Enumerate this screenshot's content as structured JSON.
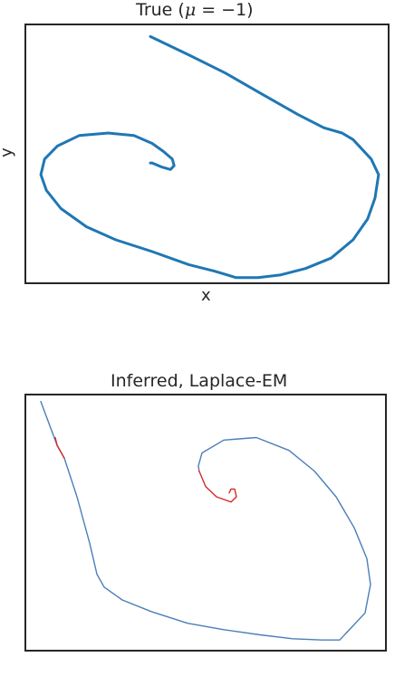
{
  "charts": [
    {
      "title": "True (",
      "title_mu": "μ",
      "title_rest": " = −1)",
      "xlabel": "x",
      "ylabel": "y"
    },
    {
      "title": "Inferred, Laplace-EM"
    }
  ],
  "chart_data": [
    {
      "type": "line",
      "title": "True (μ = −1)",
      "xlabel": "x",
      "ylabel": "y",
      "xlim": [
        0,
        1
      ],
      "ylim": [
        0,
        1
      ],
      "grid": false,
      "series": [
        {
          "color": "#1f77b4",
          "x": [
            0.345,
            0.45,
            0.55,
            0.65,
            0.75,
            0.82,
            0.87,
            0.9,
            0.95,
            0.97,
            0.96,
            0.94,
            0.9,
            0.84,
            0.77,
            0.7,
            0.64,
            0.58,
            0.52,
            0.45,
            0.35,
            0.25,
            0.17,
            0.1,
            0.06,
            0.045,
            0.055,
            0.09,
            0.15,
            0.23,
            0.3,
            0.35,
            0.38,
            0.405,
            0.41,
            0.4,
            0.375,
            0.35,
            0.345
          ],
          "y": [
            0.95,
            0.88,
            0.81,
            0.73,
            0.65,
            0.6,
            0.58,
            0.555,
            0.48,
            0.42,
            0.33,
            0.25,
            0.17,
            0.1,
            0.06,
            0.035,
            0.025,
            0.025,
            0.05,
            0.075,
            0.125,
            0.17,
            0.22,
            0.29,
            0.36,
            0.42,
            0.48,
            0.53,
            0.57,
            0.58,
            0.57,
            0.54,
            0.51,
            0.48,
            0.455,
            0.44,
            0.45,
            0.465,
            0.465
          ]
        }
      ]
    },
    {
      "type": "line",
      "title": "Inferred, Laplace-EM",
      "xlim": [
        0,
        1
      ],
      "ylim": [
        0,
        1
      ],
      "grid": false,
      "series": [
        {
          "color": "#4a7fb8",
          "x": [
            0.045,
            0.09,
            0.11,
            0.145,
            0.18,
            0.2,
            0.22,
            0.27,
            0.35,
            0.45,
            0.55,
            0.65,
            0.74,
            0.82,
            0.87,
            0.94,
            0.955,
            0.945,
            0.91,
            0.86,
            0.8,
            0.73,
            0.64,
            0.55,
            0.49,
            0.48,
            0.482
          ],
          "y": [
            0.97,
            0.8,
            0.75,
            0.6,
            0.42,
            0.3,
            0.25,
            0.2,
            0.155,
            0.11,
            0.085,
            0.065,
            0.05,
            0.045,
            0.045,
            0.15,
            0.26,
            0.36,
            0.48,
            0.6,
            0.7,
            0.78,
            0.83,
            0.82,
            0.77,
            0.72,
            0.7
          ]
        },
        {
          "color": "#d62728",
          "x": [
            0.085,
            0.09,
            0.11
          ],
          "y": [
            0.83,
            0.8,
            0.75
          ]
        },
        {
          "color": "#d62728",
          "x": [
            0.482,
            0.5,
            0.53,
            0.57,
            0.585,
            0.58,
            0.57,
            0.565
          ],
          "y": [
            0.7,
            0.64,
            0.6,
            0.58,
            0.6,
            0.63,
            0.63,
            0.615
          ]
        }
      ]
    }
  ]
}
